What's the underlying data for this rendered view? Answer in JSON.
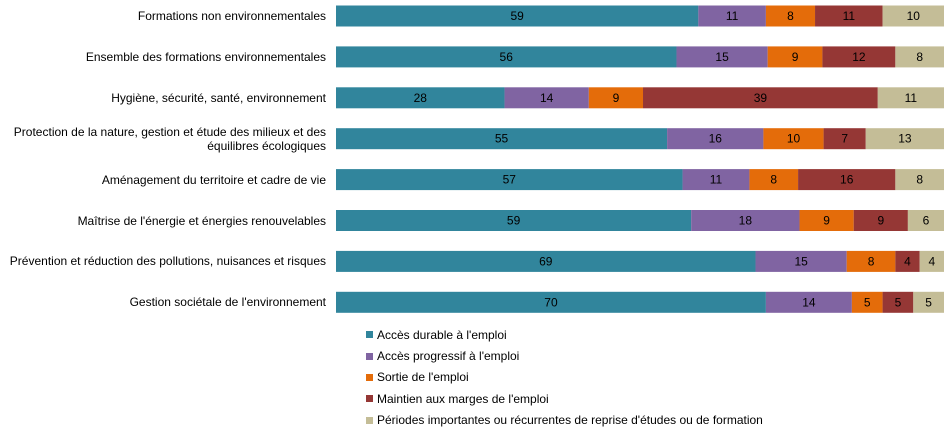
{
  "chart_data": {
    "type": "bar",
    "orientation": "horizontal",
    "stacked": true,
    "normalized": true,
    "categories": [
      "Formations non environnementales",
      "Ensemble des formations environnementales",
      "Hygiène, sécurité, santé, environnement",
      "Protection de la nature, gestion et étude des milieux et des équilibres écologiques",
      "Aménagement du territoire et cadre de vie",
      "Maîtrise de l'énergie et énergies renouvelables",
      "Prévention et réduction des pollutions, nuisances et risques",
      "Gestion sociétale de l'environnement"
    ],
    "series": [
      {
        "name": "Accès durable à l'emploi",
        "color": "#31859c",
        "values": [
          59,
          56,
          28,
          55,
          57,
          59,
          69,
          70
        ]
      },
      {
        "name": "Accès progressif à l'emploi",
        "color": "#8064a2",
        "values": [
          11,
          15,
          14,
          16,
          11,
          18,
          15,
          14
        ]
      },
      {
        "name": "Sortie de l'emploi",
        "color": "#e46c0a",
        "values": [
          8,
          9,
          9,
          10,
          8,
          9,
          8,
          5
        ]
      },
      {
        "name": "Maintien aux marges de l'emploi",
        "color": "#953735",
        "values": [
          11,
          12,
          39,
          7,
          16,
          9,
          4,
          5
        ]
      },
      {
        "name": "Périodes importantes ou récurrentes de reprise d'études ou de formation",
        "color": "#c4bd97",
        "values": [
          10,
          8,
          11,
          13,
          8,
          6,
          4,
          5
        ]
      }
    ],
    "title": "",
    "xlabel": "",
    "ylabel": "",
    "legend_position": "bottom",
    "grid": false
  }
}
